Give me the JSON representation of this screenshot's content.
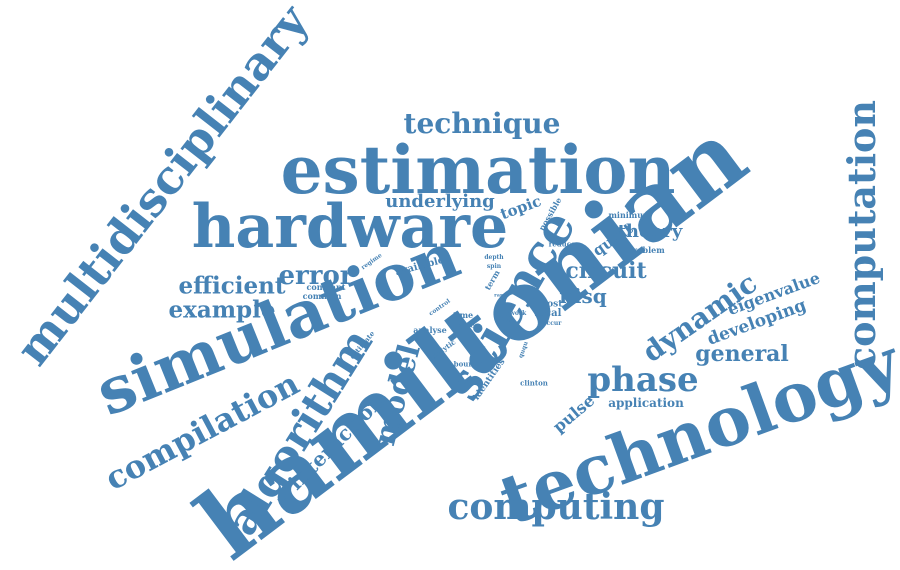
{
  "accent_color": "#4682b4",
  "background_color": "#ffffff",
  "words": [
    "hamiltonian",
    "simulation",
    "estimation",
    "hardware",
    "technology",
    "multidisciplinary",
    "science",
    "algorithm",
    "computation",
    "computing",
    "compilation",
    "technique",
    "phase",
    "model",
    "dynamic",
    "error",
    "efficient",
    "example",
    "circuit",
    "interaction",
    "general",
    "theory",
    "developing",
    "eigenvalue",
    "underlying",
    "nisq",
    "pulse",
    "qubit",
    "topic",
    "application",
    "available",
    "constant",
    "commun",
    "estimate",
    "analyse",
    "analytic",
    "bound",
    "identities",
    "clinton",
    "local",
    "most",
    "time",
    "gate",
    "control",
    "work",
    "level",
    "depth",
    "spin",
    "term",
    "possible",
    "reduce",
    "problem",
    "minimum",
    "regime",
    "ququ",
    "occur",
    "rare",
    "qaoa"
  ]
}
